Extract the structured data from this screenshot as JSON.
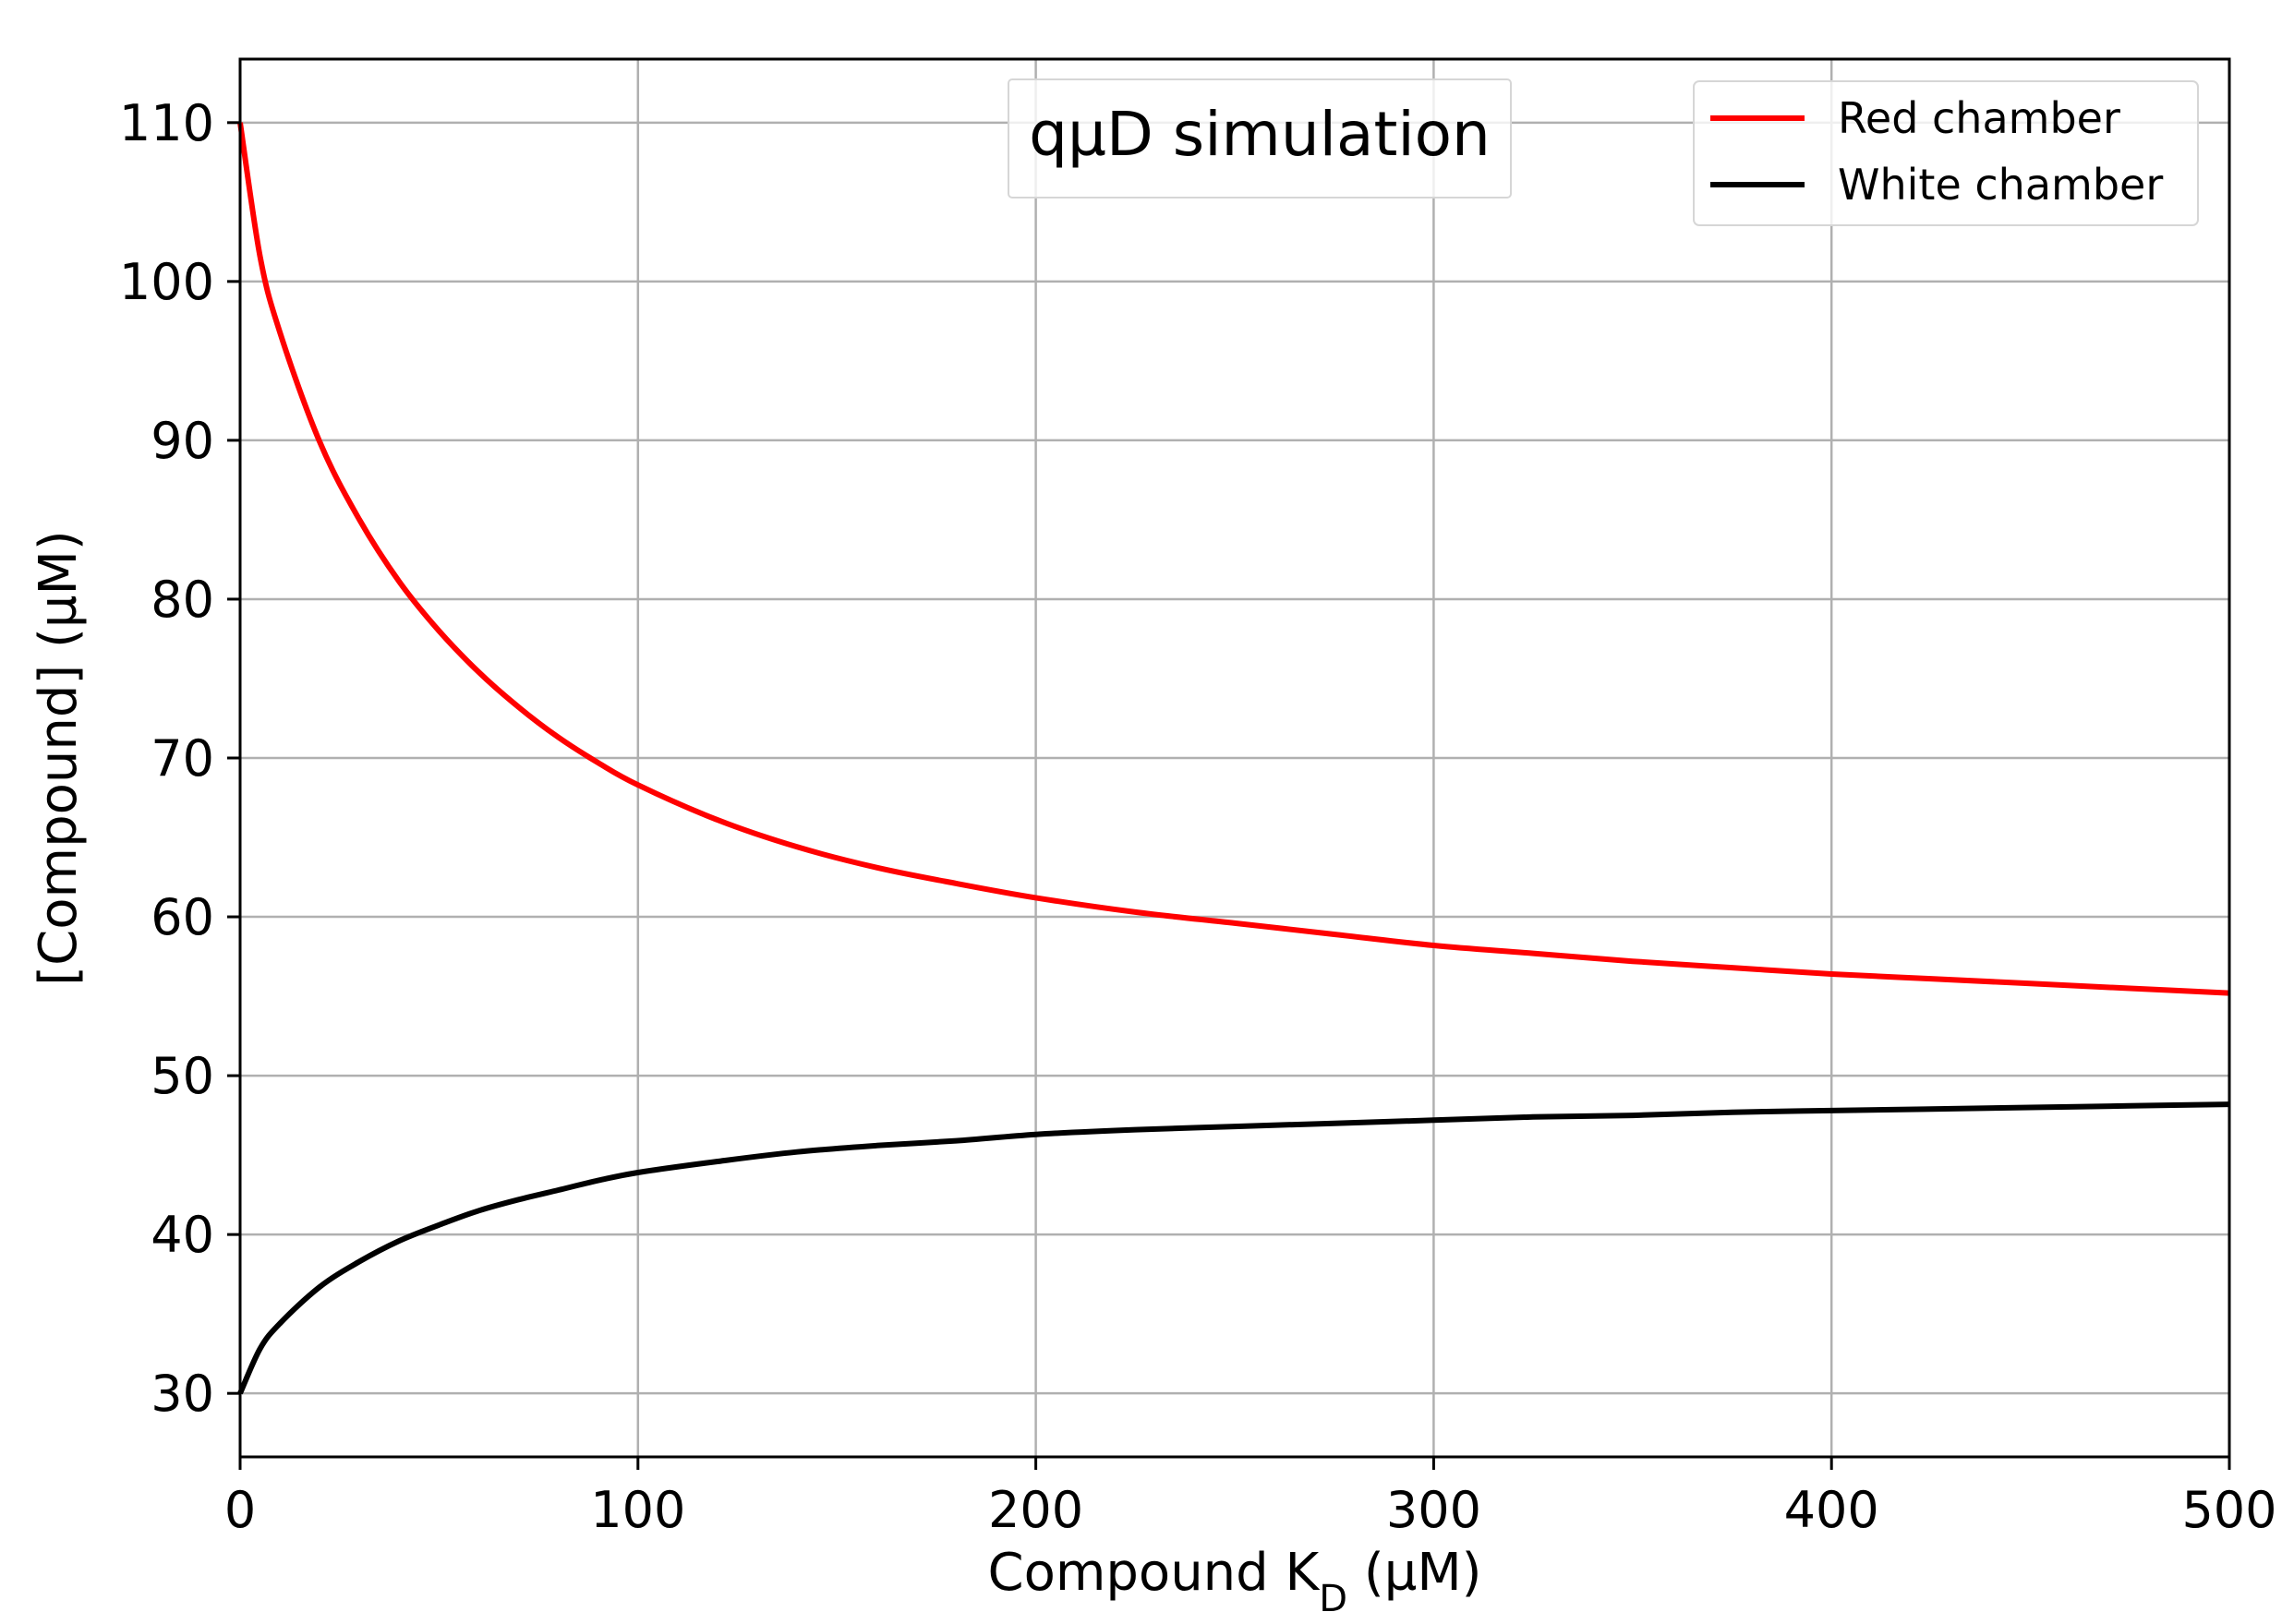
{
  "chart_data": {
    "type": "line",
    "title": "qµD simulation",
    "xlabel": "Compound K",
    "xlabel_subscript": "D",
    "xlabel_unit": " (µM)",
    "ylabel": "[Compound] (µM)",
    "xlim": [
      0,
      500
    ],
    "ylim": [
      26,
      114
    ],
    "xticks": [
      0,
      100,
      200,
      300,
      400,
      500
    ],
    "yticks": [
      30,
      40,
      50,
      60,
      70,
      80,
      90,
      100,
      110
    ],
    "grid": true,
    "legend_position": "top-right",
    "title_position": "top-center",
    "x": [
      0,
      5,
      10,
      20,
      30,
      40,
      50,
      60,
      70,
      80,
      90,
      100,
      120,
      140,
      160,
      180,
      200,
      225,
      250,
      275,
      300,
      325,
      350,
      375,
      400,
      425,
      450,
      475,
      500
    ],
    "series": [
      {
        "name": "Red chamber",
        "color": "#ff0000",
        "values": [
          110,
          101.6,
          96.8,
          89.9,
          85.0,
          81.1,
          78.0,
          75.4,
          73.2,
          71.3,
          69.7,
          68.3,
          66.1,
          64.4,
          63.1,
          62.1,
          61.2,
          60.3,
          59.6,
          58.9,
          58.2,
          57.7,
          57.2,
          56.8,
          56.4,
          56.1,
          55.8,
          55.5,
          55.2
        ]
      },
      {
        "name": "White chamber",
        "color": "#000000",
        "values": [
          30,
          32.8,
          34.4,
          36.7,
          38.3,
          39.6,
          40.6,
          41.5,
          42.2,
          42.8,
          43.4,
          43.9,
          44.6,
          45.2,
          45.6,
          45.9,
          46.3,
          46.6,
          46.8,
          47.0,
          47.2,
          47.4,
          47.5,
          47.7,
          47.8,
          47.9,
          48.0,
          48.1,
          48.2
        ]
      }
    ]
  }
}
